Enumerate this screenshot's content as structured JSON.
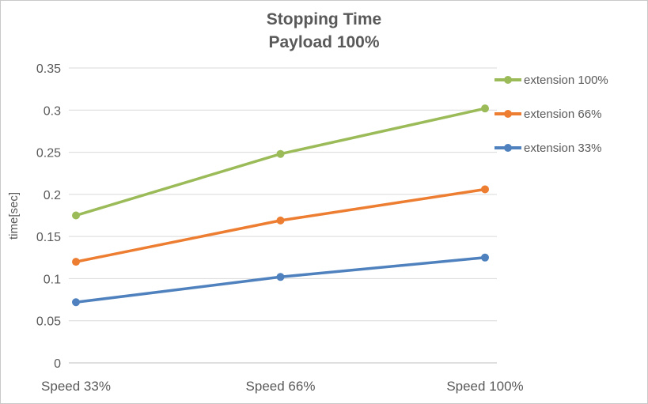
{
  "title": {
    "line1": "Stopping Time",
    "line2": "Payload 100%",
    "color": "#595959"
  },
  "chart_data": {
    "type": "line",
    "title": "Stopping Time Payload 100%",
    "categories": [
      "Speed 33%",
      "Speed 66%",
      "Speed 100%"
    ],
    "series": [
      {
        "name": "extension 100%",
        "color": "#9bbb59",
        "values": [
          0.175,
          0.248,
          0.302
        ]
      },
      {
        "name": "extension 66%",
        "color": "#ed7d31",
        "values": [
          0.12,
          0.169,
          0.206
        ]
      },
      {
        "name": "extension 33%",
        "color": "#4e81bd",
        "values": [
          0.072,
          0.102,
          0.125
        ]
      }
    ],
    "xlabel": "",
    "ylabel": "time[sec]",
    "ylim": [
      0,
      0.35
    ],
    "yticks": [
      0,
      0.05,
      0.1,
      0.15,
      0.2,
      0.25,
      0.3,
      0.35
    ],
    "grid": true,
    "legend_position": "right",
    "marker": "circle"
  },
  "style": {
    "axis_text_color": "#595959",
    "gridline_color": "#d9d9d9",
    "axis_line_color": "#bfbfbf",
    "background": "#ffffff",
    "frame_border": "#c9c9c9"
  }
}
